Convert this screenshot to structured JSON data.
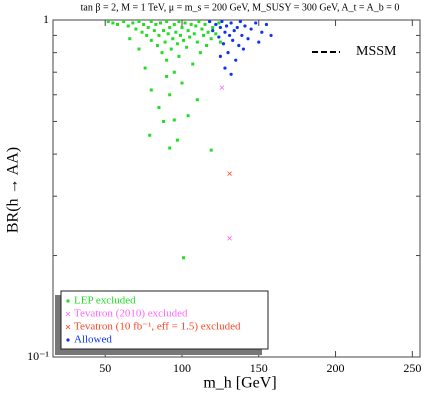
{
  "chart_data": {
    "type": "scatter",
    "title": "tan β = 2,  M = 1 TeV,  μ = m_s = 200 GeV,  M_SUSY = 300 GeV,  A_t = A_b = 0",
    "x_label": "m_h [GeV]",
    "y_label": "BR(h → AA)",
    "xlim": [
      16,
      255
    ],
    "ylim": [
      0.1,
      1
    ],
    "log_y": true,
    "xticks": [
      50,
      100,
      150,
      200,
      250
    ],
    "yticks": [
      {
        "value": 0.1,
        "label": "10⁻¹"
      },
      1
    ],
    "yticks_minor": [
      0.2,
      0.3,
      0.4,
      0.5,
      0.6,
      0.7,
      0.8,
      0.9
    ],
    "legend_position": "lower left",
    "line_legend_label": "MSSM",
    "series": [
      {
        "name": "LEP excluded",
        "color": "#22dd22",
        "marker": "square",
        "x": [
          52,
          55,
          58,
          62,
          65,
          68,
          70,
          72,
          74,
          75,
          77,
          78,
          80,
          80,
          82,
          83,
          84,
          85,
          86,
          87,
          88,
          89,
          90,
          90,
          91,
          92,
          93,
          94,
          95,
          95,
          96,
          97,
          98,
          98,
          99,
          100,
          100,
          101,
          102,
          103,
          104,
          105,
          106,
          107,
          108,
          109,
          110,
          111,
          112,
          113,
          114,
          115,
          116,
          117,
          118,
          119,
          120,
          122,
          124,
          125,
          80,
          85,
          88,
          92,
          95,
          79,
          92,
          97,
          119,
          101,
          110,
          104,
          90,
          76,
          72,
          66
        ],
        "values": [
          0.99,
          0.98,
          0.97,
          0.99,
          0.96,
          0.98,
          0.94,
          0.99,
          0.92,
          0.97,
          0.9,
          0.95,
          0.99,
          0.87,
          0.93,
          0.97,
          0.84,
          0.9,
          0.98,
          0.8,
          0.93,
          0.86,
          0.99,
          0.76,
          0.91,
          0.95,
          0.82,
          0.88,
          0.97,
          0.7,
          0.92,
          0.85,
          0.99,
          0.78,
          0.9,
          0.95,
          0.65,
          0.87,
          0.98,
          0.83,
          0.93,
          0.89,
          0.97,
          0.74,
          0.91,
          0.96,
          0.86,
          0.99,
          0.8,
          0.94,
          0.9,
          0.97,
          0.84,
          0.92,
          0.99,
          0.88,
          0.95,
          0.91,
          0.98,
          0.86,
          0.62,
          0.55,
          0.5,
          0.6,
          0.505,
          0.455,
          0.417,
          0.44,
          0.411,
          0.197,
          0.58,
          0.52,
          0.68,
          0.72,
          0.82,
          0.88
        ]
      },
      {
        "name": "Tevatron (2010) excluded",
        "color": "#ff66ff",
        "marker": "cross",
        "x": [
          126,
          131
        ],
        "values": [
          0.63,
          0.225
        ]
      },
      {
        "name": "Tevatron (10 fb⁻¹, eff = 1.5) excluded",
        "color": "#ff4422",
        "marker": "cross",
        "x": [
          131
        ],
        "values": [
          0.35
        ]
      },
      {
        "name": "Allowed",
        "color": "#1133ee",
        "marker": "circle",
        "x": [
          118,
          120,
          122,
          124,
          125,
          126,
          127,
          128,
          129,
          130,
          131,
          132,
          133,
          134,
          135,
          136,
          137,
          138,
          139,
          140,
          141,
          143,
          145,
          148,
          150,
          152,
          155,
          158,
          128,
          132,
          125
        ],
        "values": [
          0.99,
          0.93,
          0.97,
          0.89,
          0.95,
          0.99,
          0.85,
          0.92,
          0.96,
          0.8,
          0.9,
          0.98,
          0.87,
          0.93,
          0.76,
          0.95,
          0.84,
          0.99,
          0.9,
          0.82,
          0.96,
          0.88,
          0.94,
          0.98,
          0.86,
          0.92,
          0.97,
          0.9,
          0.72,
          0.69,
          0.78
        ]
      }
    ]
  }
}
